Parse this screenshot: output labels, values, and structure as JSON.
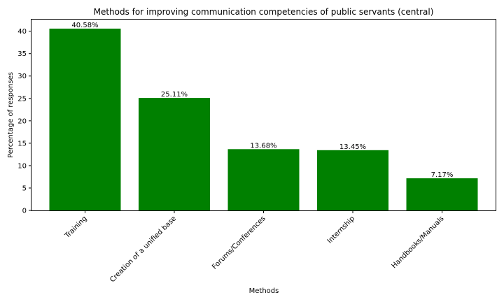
{
  "chart_data": {
    "type": "bar",
    "title": "Methods for improving communication competencies of public servants (central)",
    "xlabel": "Methods",
    "ylabel": "Percentage of responses",
    "categories": [
      "Training",
      "Creation of a unified base",
      "Forums/Conferences",
      "Internship",
      "Handbooks/Manuals"
    ],
    "values": [
      40.58,
      25.11,
      13.68,
      13.45,
      7.17
    ],
    "data_labels": [
      "40.58%",
      "25.11%",
      "13.68%",
      "13.45%",
      "7.17%"
    ],
    "ylim": [
      0,
      42.6
    ],
    "yticks": [
      0,
      5,
      10,
      15,
      20,
      25,
      30,
      35,
      40
    ],
    "bar_color": "#008000",
    "grid": false,
    "legend": "none"
  }
}
